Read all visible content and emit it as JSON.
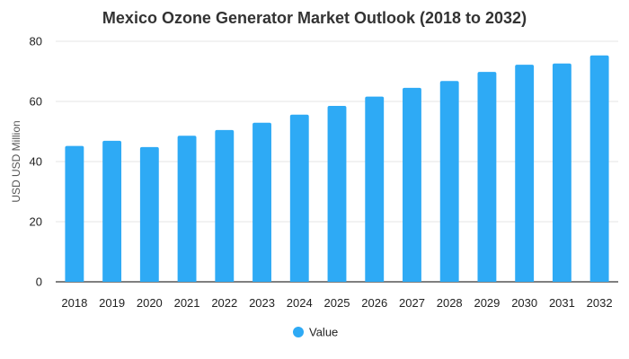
{
  "chart_data": {
    "type": "bar",
    "title": "Mexico Ozone Generator Market Outlook (2018 to 2032)",
    "xlabel": "",
    "ylabel": "USD USD Million",
    "ylim": [
      0,
      80
    ],
    "yticks": [
      0,
      20,
      40,
      60,
      80
    ],
    "grid": true,
    "legend_position": "bottom-center",
    "categories": [
      "2018",
      "2019",
      "2020",
      "2021",
      "2022",
      "2023",
      "2024",
      "2025",
      "2026",
      "2027",
      "2028",
      "2029",
      "2030",
      "2031",
      "2032"
    ],
    "series": [
      {
        "name": "Value",
        "color": "#2eaaf5",
        "values": [
          45.2,
          46.9,
          44.8,
          48.6,
          50.5,
          52.9,
          55.6,
          58.5,
          61.6,
          64.5,
          66.8,
          69.8,
          72.2,
          72.6,
          75.3
        ]
      }
    ]
  }
}
